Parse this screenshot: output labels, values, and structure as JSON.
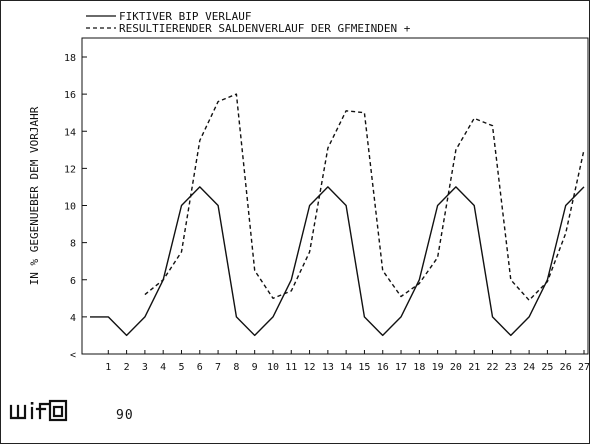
{
  "chart_data": {
    "type": "line",
    "title": "",
    "xlabel": "",
    "ylabel": "IN % GEGENUEBER DEM VORJAHR",
    "ylim": [
      2,
      18
    ],
    "xlim": [
      0,
      27
    ],
    "yticks": [
      2,
      4,
      6,
      8,
      10,
      12,
      14,
      16,
      18
    ],
    "ytick_labels": [
      "<",
      "4",
      "6",
      "8",
      "10",
      "12",
      "14",
      "16",
      "18"
    ],
    "xticks": [
      1,
      2,
      3,
      4,
      5,
      6,
      7,
      8,
      9,
      10,
      11,
      12,
      13,
      14,
      15,
      16,
      17,
      18,
      19,
      20,
      21,
      22,
      23,
      24,
      25,
      26,
      27
    ],
    "grid": false,
    "legend_position": "top-left",
    "series": [
      {
        "name": "FIKTIVER BIP VERLAUF",
        "style": "solid",
        "color": "#111111",
        "x": [
          0,
          1,
          2,
          3,
          4,
          5,
          6,
          7,
          8,
          9,
          10,
          11,
          12,
          13,
          14,
          15,
          16,
          17,
          18,
          19,
          20,
          21,
          22,
          23,
          24,
          25,
          26,
          27
        ],
        "values": [
          4,
          4,
          3,
          4,
          6,
          10,
          11,
          10,
          4,
          3,
          4,
          6,
          10,
          11,
          10,
          4,
          3,
          4,
          6,
          10,
          11,
          10,
          4,
          3,
          4,
          6,
          10,
          11
        ]
      },
      {
        "name": "RESULTIERENDER SALDENVERLAUF DER GFMEINDEN +",
        "style": "dashed",
        "color": "#111111",
        "x": [
          3,
          4,
          5,
          6,
          7,
          8,
          9,
          10,
          11,
          12,
          13,
          14,
          15,
          16,
          17,
          18,
          19,
          20,
          21,
          22,
          23,
          24,
          25,
          26,
          27
        ],
        "values": [
          5.2,
          6,
          7.5,
          13.5,
          15.6,
          16,
          6.5,
          5,
          5.4,
          7.5,
          13.1,
          15.1,
          15,
          6.5,
          5.1,
          5.8,
          7.2,
          13,
          14.7,
          14.3,
          6,
          4.9,
          5.9,
          8.5,
          13
        ]
      }
    ]
  },
  "footer": {
    "logo_text": "wifo",
    "page_number": "90"
  }
}
